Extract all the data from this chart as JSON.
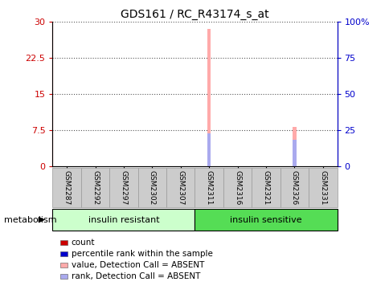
{
  "title": "GDS161 / RC_R43174_s_at",
  "samples": [
    "GSM2287",
    "GSM2292",
    "GSM2297",
    "GSM2302",
    "GSM2307",
    "GSM2311",
    "GSM2316",
    "GSM2321",
    "GSM2326",
    "GSM2331"
  ],
  "group1_label": "insulin resistant",
  "group2_label": "insulin sensitive",
  "group_row_label": "metabolism",
  "group1_color": "#ccffcc",
  "group2_color": "#55dd55",
  "ylim_left": [
    0,
    30
  ],
  "ylim_right": [
    0,
    100
  ],
  "yticks_left": [
    0,
    7.5,
    15,
    22.5,
    30
  ],
  "yticks_right": [
    0,
    25,
    50,
    75,
    100
  ],
  "ytick_labels_left": [
    "0",
    "7.5",
    "15",
    "22.5",
    "30"
  ],
  "ytick_labels_right": [
    "0",
    "25",
    "50",
    "75",
    "100%"
  ],
  "left_axis_color": "#cc0000",
  "right_axis_color": "#0000cc",
  "absent_value_bars": {
    "GSM2311": 28.5,
    "GSM2326": 8.2
  },
  "absent_rank_bars_left_scale": {
    "GSM2311": 6.8,
    "GSM2326": 5.5
  },
  "absent_value_color": "#ffaaaa",
  "absent_rank_color": "#aaaaee",
  "legend_items": [
    {
      "label": "count",
      "color": "#cc0000"
    },
    {
      "label": "percentile rank within the sample",
      "color": "#0000cc"
    },
    {
      "label": "value, Detection Call = ABSENT",
      "color": "#ffaaaa"
    },
    {
      "label": "rank, Detection Call = ABSENT",
      "color": "#aaaaee"
    }
  ],
  "grid_color": "#555555",
  "sample_box_color": "#cccccc",
  "sample_box_edge_color": "#999999",
  "bar_width": 0.12
}
